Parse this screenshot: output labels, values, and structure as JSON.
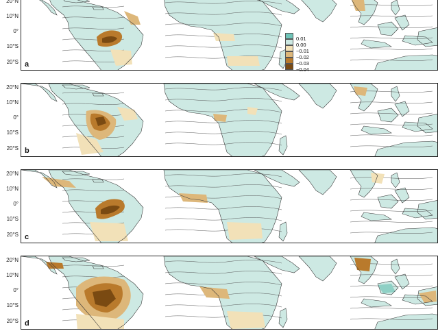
{
  "lat_labels": [
    "20°N",
    "10°N",
    "0°",
    "10°S",
    "20°S"
  ],
  "panels": [
    {
      "id": "a",
      "label": "a"
    },
    {
      "id": "b",
      "label": "b"
    },
    {
      "id": "c",
      "label": "c"
    },
    {
      "id": "d",
      "label": "d"
    }
  ],
  "legend": {
    "items": [
      {
        "label": "0.01",
        "color": "#6fc4b8"
      },
      {
        "label": "0.00",
        "color": "#cde9e3"
      },
      {
        "label": "−0.01",
        "color": "#f2e1b8"
      },
      {
        "label": "−0.02",
        "color": "#ddb77a"
      },
      {
        "label": "−0.03",
        "color": "#b97a2c"
      },
      {
        "label": "−0.04",
        "color": "#7a4a12"
      }
    ]
  },
  "colors": {
    "land_base": "#cde9e3",
    "ocean": "#ffffff",
    "dry_light": "#f2e1b8",
    "dry_mid": "#ddb77a",
    "dry_strong": "#b97a2c",
    "dry_extreme": "#7a4a12",
    "wet": "#8fd0c5",
    "contour": "#555555",
    "coast": "#3a3a3a"
  },
  "icons": {
    "legend": "color-scale-legend"
  }
}
